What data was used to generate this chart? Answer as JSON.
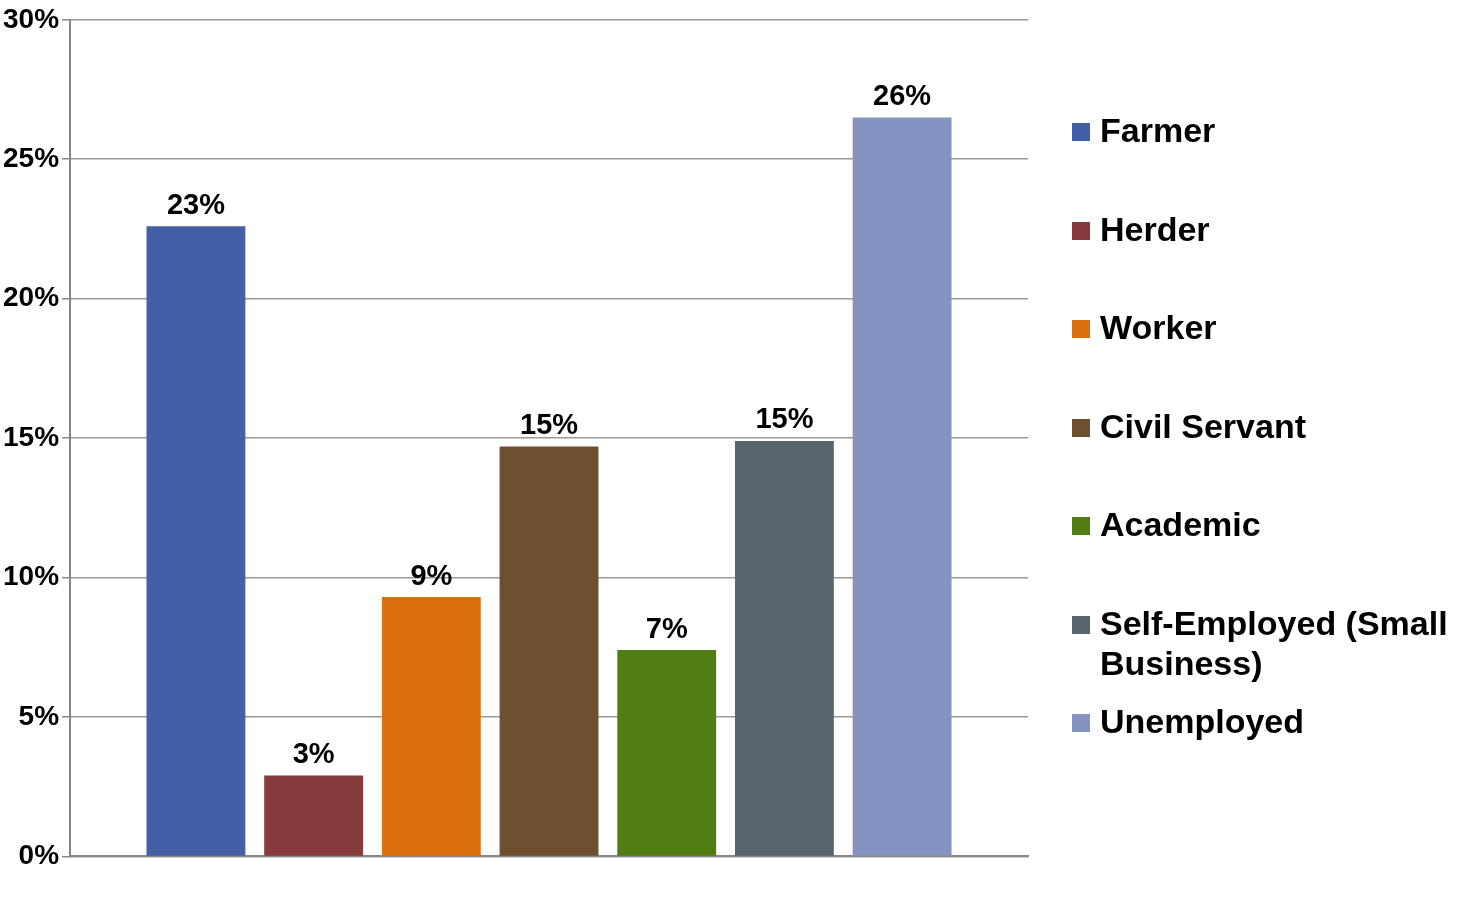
{
  "chart_data": {
    "type": "bar",
    "categories": [
      null
    ],
    "series": [
      {
        "name": "Farmer",
        "color": "#4360a6",
        "values": [
          22.6
        ],
        "value_labels": [
          "23%"
        ]
      },
      {
        "name": "Herder",
        "color": "#883a3c",
        "values": [
          2.9
        ],
        "value_labels": [
          "3%"
        ]
      },
      {
        "name": "Worker",
        "color": "#dc700e",
        "values": [
          9.3
        ],
        "value_labels": [
          "9%"
        ]
      },
      {
        "name": "Civil Servant",
        "color": "#6e4f30",
        "values": [
          14.7
        ],
        "value_labels": [
          "15%"
        ]
      },
      {
        "name": "Academic",
        "color": "#517d15",
        "values": [
          7.4
        ],
        "value_labels": [
          "7%"
        ]
      },
      {
        "name": "Self-Employed (Small Business)",
        "color": "#59656c",
        "values": [
          14.9
        ],
        "value_labels": [
          "15%"
        ]
      },
      {
        "name": "Unemployed",
        "color": "#8593c2",
        "values": [
          26.5
        ],
        "value_labels": [
          "26%"
        ]
      }
    ],
    "ylim": [
      0,
      30
    ],
    "yticks": [
      {
        "value": 0,
        "label": "0%"
      },
      {
        "value": 5,
        "label": "5%"
      },
      {
        "value": 10,
        "label": "10%"
      },
      {
        "value": 15,
        "label": "15%"
      },
      {
        "value": 20,
        "label": "20%"
      },
      {
        "value": 25,
        "label": "25%"
      },
      {
        "value": 30,
        "label": "30%"
      }
    ],
    "grid": "y",
    "legend": "right"
  }
}
